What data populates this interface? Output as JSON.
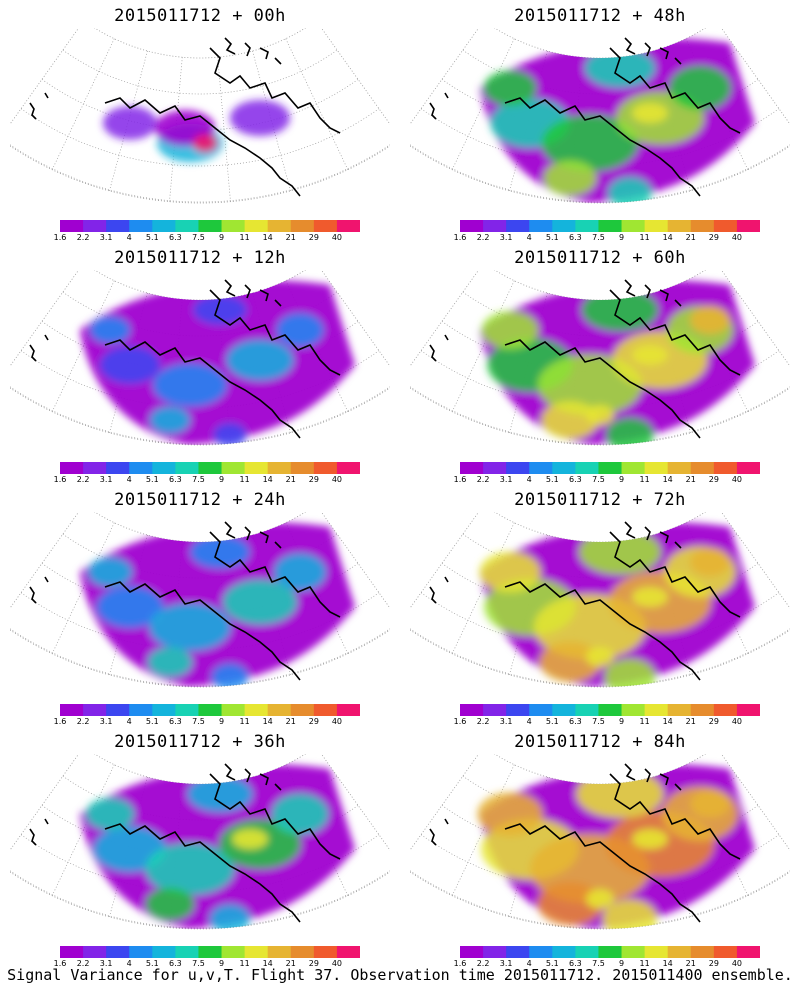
{
  "panels": [
    {
      "title": "2015011712 + 00h",
      "intensity": 0
    },
    {
      "title": "2015011712 + 48h",
      "intensity": 4
    },
    {
      "title": "2015011712 + 12h",
      "intensity": 1
    },
    {
      "title": "2015011712 + 60h",
      "intensity": 5
    },
    {
      "title": "2015011712 + 24h",
      "intensity": 2
    },
    {
      "title": "2015011712 + 72h",
      "intensity": 6
    },
    {
      "title": "2015011712 + 36h",
      "intensity": 3
    },
    {
      "title": "2015011712 + 84h",
      "intensity": 7
    }
  ],
  "colorbar": {
    "colors": [
      "#a000d0",
      "#8224e8",
      "#3c46f0",
      "#1e8cf0",
      "#14b4dc",
      "#18d2b4",
      "#1ec83c",
      "#a0e632",
      "#e6e632",
      "#e6b432",
      "#e68c2d",
      "#f05a2d",
      "#f0146e"
    ],
    "labels": [
      "1.6",
      "2.2",
      "3.1",
      "4",
      "5.1",
      "6.3",
      "7.5",
      "9",
      "11",
      "14",
      "21",
      "29",
      "40"
    ]
  },
  "footer": "Signal Variance for u,v,T. Flight 37. Observation time 2015011712. 2015011400 ensemble."
}
